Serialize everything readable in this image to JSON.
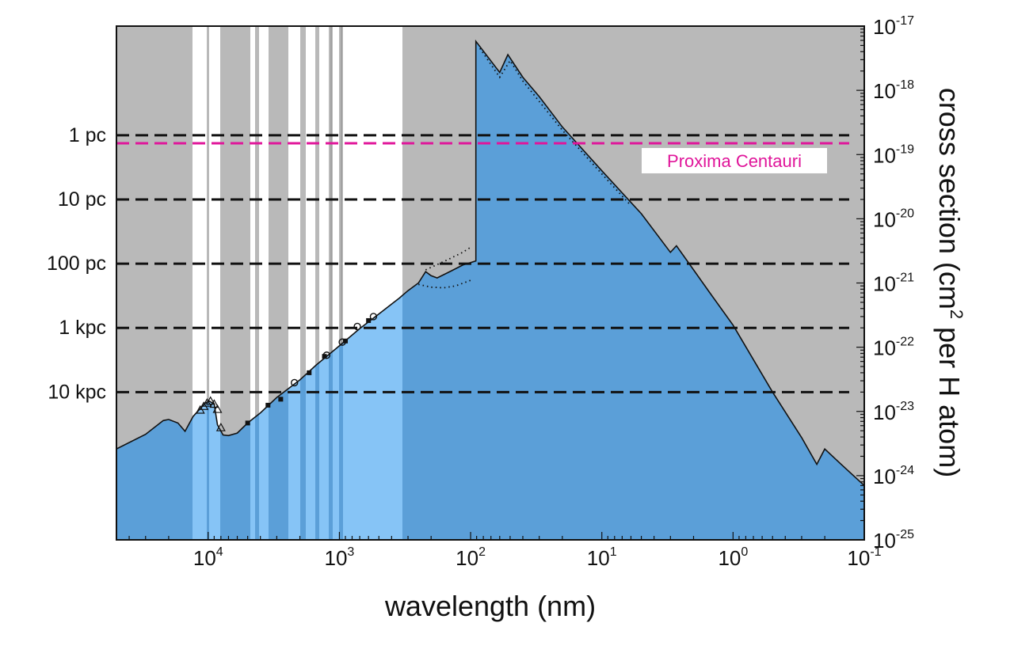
{
  "chart_data": {
    "type": "area",
    "title": "",
    "xlabel": "wavelength (nm)",
    "ylabel_parts": {
      "before": "cross section (cm",
      "sup": "2",
      "after": " per H atom)"
    },
    "x_scale": "log",
    "x_reversed": true,
    "xlim_nm": [
      50000,
      0.1
    ],
    "y_scale": "log",
    "ylim_cm2": [
      1e-25,
      1e-17
    ],
    "x_ticks": [
      {
        "value": 10000,
        "base": "10",
        "exp": "4"
      },
      {
        "value": 1000,
        "base": "10",
        "exp": "3"
      },
      {
        "value": 100,
        "base": "10",
        "exp": "2"
      },
      {
        "value": 10,
        "base": "10",
        "exp": "1"
      },
      {
        "value": 1,
        "base": "10",
        "exp": "0"
      },
      {
        "value": 0.1,
        "base": "10",
        "exp": "-1"
      }
    ],
    "y_ticks": [
      {
        "value": 1e-17,
        "base": "10",
        "exp": "-17"
      },
      {
        "value": 1e-18,
        "base": "10",
        "exp": "-18"
      },
      {
        "value": 1e-19,
        "base": "10",
        "exp": "-19"
      },
      {
        "value": 1e-20,
        "base": "10",
        "exp": "-20"
      },
      {
        "value": 1e-21,
        "base": "10",
        "exp": "-21"
      },
      {
        "value": 1e-22,
        "base": "10",
        "exp": "-22"
      },
      {
        "value": 1e-23,
        "base": "10",
        "exp": "-23"
      },
      {
        "value": 1e-24,
        "base": "10",
        "exp": "-24"
      },
      {
        "value": 1e-25,
        "base": "10",
        "exp": "-25"
      }
    ],
    "distance_lines": [
      {
        "label": "1 pc",
        "y": 2e-19
      },
      {
        "label": "10 pc",
        "y": 2e-20
      },
      {
        "label": "100 pc",
        "y": 2e-21
      },
      {
        "label": "1 kpc",
        "y": 2e-22
      },
      {
        "label": "10 kpc",
        "y": 2e-23
      }
    ],
    "highlight_line": {
      "label": "Proxima Centauri",
      "y": 1.5e-19,
      "color": "#e0159a"
    },
    "series": [
      {
        "points": [
          [
            50000,
            2.6e-24
          ],
          [
            30000,
            4.4e-24
          ],
          [
            22000,
            7.2e-24
          ],
          [
            20000,
            7.5e-24
          ],
          [
            17000,
            6.6e-24
          ],
          [
            15000,
            4.9e-24
          ],
          [
            13000,
            8.4e-24
          ],
          [
            10500,
            1.35e-23
          ],
          [
            9800,
            1.45e-23
          ],
          [
            9000,
            1.3e-23
          ],
          [
            8500,
            6.2e-24
          ],
          [
            7700,
            4.3e-24
          ],
          [
            7000,
            4.2e-24
          ],
          [
            6000,
            4.6e-24
          ],
          [
            5000,
            6.6e-24
          ],
          [
            4000,
            9.5e-24
          ],
          [
            3000,
            1.65e-23
          ],
          [
            2000,
            3.1e-23
          ],
          [
            1500,
            5.3e-23
          ],
          [
            1000,
            1.05e-22
          ],
          [
            700,
            1.95e-22
          ],
          [
            500,
            3.3e-22
          ],
          [
            350,
            5.8e-22
          ],
          [
            300,
            7.6e-22
          ],
          [
            250,
            1e-21
          ],
          [
            220,
            1.5e-21
          ],
          [
            200,
            1.3e-21
          ],
          [
            180,
            1.2e-21
          ],
          [
            140,
            1.55e-21
          ],
          [
            115,
            1.9e-21
          ],
          [
            91.2,
            2.2e-21
          ],
          [
            91.2,
            5.8e-18
          ],
          [
            60,
            1.9e-18
          ],
          [
            52,
            3.6e-18
          ],
          [
            40,
            1.6e-18
          ],
          [
            30,
            8e-19
          ],
          [
            20,
            2.7e-19
          ],
          [
            10,
            5.6e-20
          ],
          [
            5,
            1.2e-20
          ],
          [
            3,
            3e-21
          ],
          [
            2.7,
            3.8e-21
          ],
          [
            2,
            1.6e-21
          ],
          [
            1.5,
            7e-22
          ],
          [
            1,
            2.2e-22
          ],
          [
            0.5,
            2e-23
          ],
          [
            0.3,
            3.9e-24
          ],
          [
            0.23,
            1.5e-24
          ],
          [
            0.2,
            2.6e-24
          ],
          [
            0.15,
            1.5e-24
          ],
          [
            0.1,
            7e-25
          ]
        ]
      }
    ],
    "dotted_upper": [
      [
        220,
        1.6e-21
      ],
      [
        150,
        2.3e-21
      ],
      [
        115,
        3e-21
      ],
      [
        100,
        3.6e-21
      ]
    ],
    "dotted_lower": [
      [
        250,
        9.5e-22
      ],
      [
        200,
        8.6e-22
      ],
      [
        160,
        8.4e-22
      ],
      [
        130,
        9e-22
      ],
      [
        100,
        1.1e-21
      ]
    ],
    "dotted_edge": [
      [
        85,
        4.5e-18
      ],
      [
        60,
        1.6e-18
      ],
      [
        50,
        2.9e-18
      ],
      [
        40,
        1.4e-18
      ],
      [
        20,
        2.4e-19
      ],
      [
        10,
        5e-20
      ],
      [
        6,
        1.6e-20
      ]
    ],
    "markers_triangle": [
      [
        11500,
        1.05e-23
      ],
      [
        10800,
        1.2e-23
      ],
      [
        10200,
        1.35e-23
      ],
      [
        9600,
        1.45e-23
      ],
      [
        9000,
        1.3e-23
      ],
      [
        8500,
        1.08e-23
      ],
      [
        8000,
        5.6e-24
      ]
    ],
    "markers_square": [
      [
        5000,
        6.6e-24
      ],
      [
        3500,
        1.25e-23
      ],
      [
        2800,
        1.55e-23
      ],
      [
        1700,
        4e-23
      ],
      [
        1300,
        7.2e-23
      ],
      [
        900,
        1.25e-22
      ],
      [
        600,
        2.6e-22
      ]
    ],
    "markers_circle": [
      [
        2200,
        2.8e-23
      ],
      [
        1250,
        7.5e-23
      ],
      [
        950,
        1.2e-22
      ],
      [
        730,
        2.1e-22
      ],
      [
        550,
        3e-22
      ]
    ]
  }
}
